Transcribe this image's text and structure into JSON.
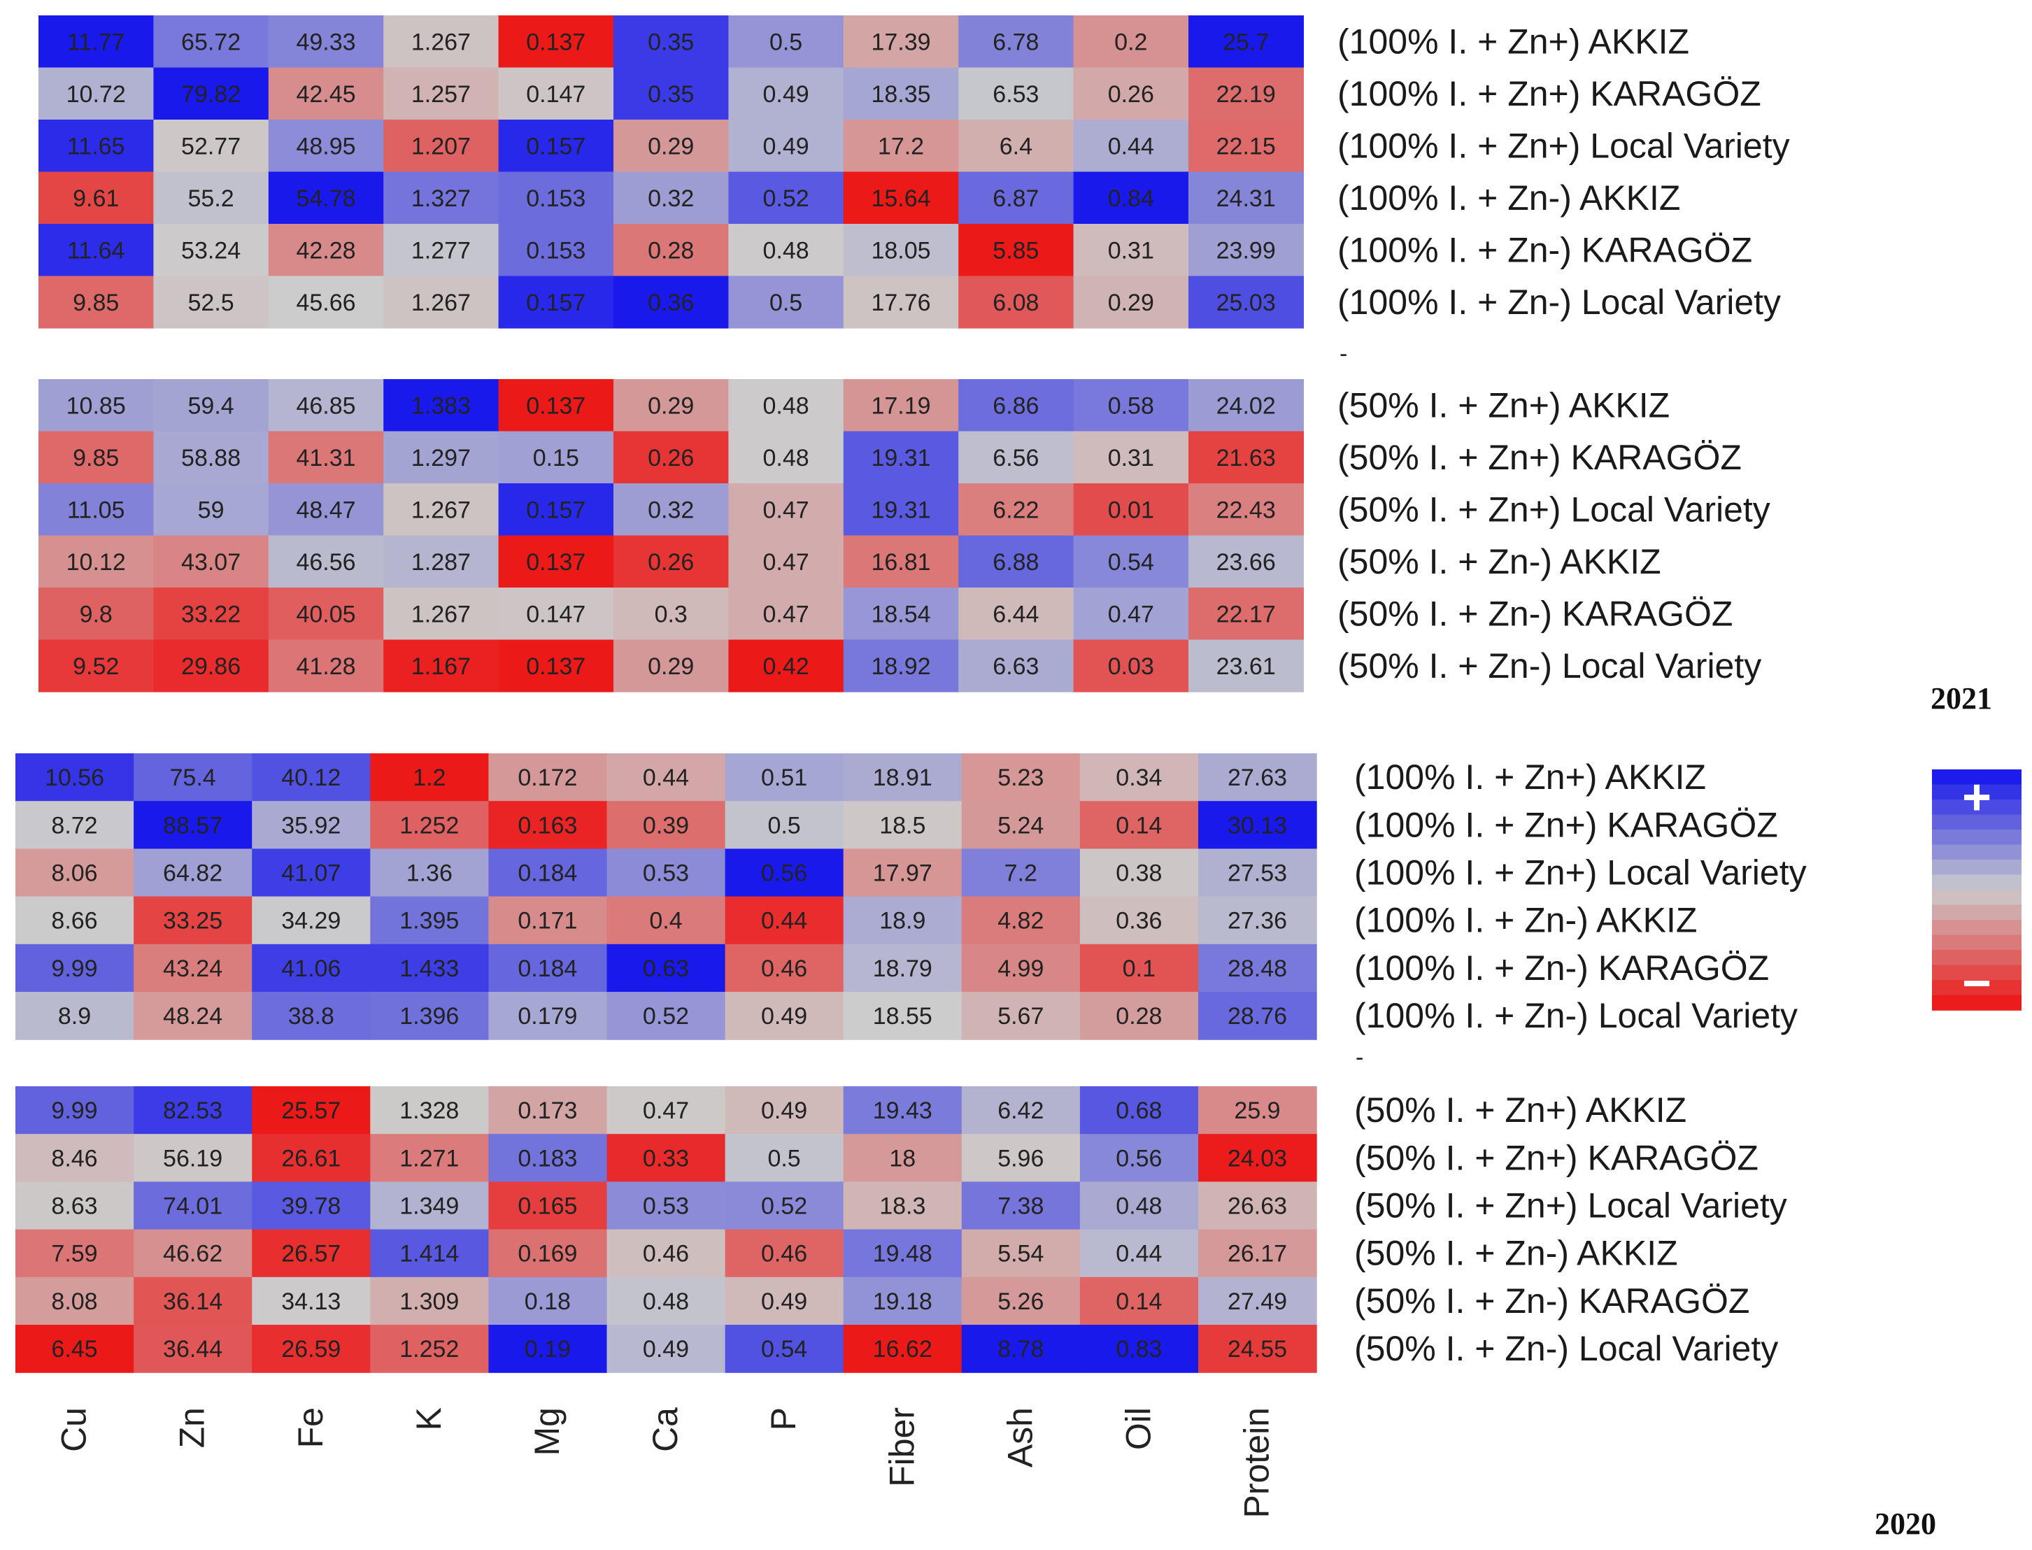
{
  "chart_data": {
    "type": "heatmap",
    "columns": [
      "Cu",
      "Zn",
      "Fe",
      "K",
      "Mg",
      "Ca",
      "P",
      "Fiber",
      "Ash",
      "Oil",
      "Protein"
    ],
    "legend": {
      "plus": "+",
      "minus": "−",
      "high_color": "#1010ee",
      "mid_color": "#cccccc",
      "low_color": "#ee1010"
    },
    "separator_mark": "-",
    "panels": [
      {
        "year": "2021",
        "groups": [
          {
            "rows": [
              {
                "label": "(100% I. + Zn+) AKKIZ",
                "values": [
                  "11.77",
                  "65.72",
                  "49.33",
                  "1.267",
                  "0.137",
                  "0.35",
                  "0.5",
                  "17.39",
                  "6.78",
                  "0.2",
                  "25.7"
                ]
              },
              {
                "label": "(100% I. + Zn+) KARAGÖZ",
                "values": [
                  "10.72",
                  "79.82",
                  "42.45",
                  "1.257",
                  "0.147",
                  "0.35",
                  "0.49",
                  "18.35",
                  "6.53",
                  "0.26",
                  "22.19"
                ]
              },
              {
                "label": "(100% I. + Zn+) Local Variety",
                "values": [
                  "11.65",
                  "52.77",
                  "48.95",
                  "1.207",
                  "0.157",
                  "0.29",
                  "0.49",
                  "17.2",
                  "6.4",
                  "0.44",
                  "22.15"
                ]
              },
              {
                "label": "(100% I. + Zn-) AKKIZ",
                "values": [
                  "9.61",
                  "55.2",
                  "54.78",
                  "1.327",
                  "0.153",
                  "0.32",
                  "0.52",
                  "15.64",
                  "6.87",
                  "0.84",
                  "24.31"
                ]
              },
              {
                "label": "(100% I. + Zn-) KARAGÖZ",
                "values": [
                  "11.64",
                  "53.24",
                  "42.28",
                  "1.277",
                  "0.153",
                  "0.28",
                  "0.48",
                  "18.05",
                  "5.85",
                  "0.31",
                  "23.99"
                ]
              },
              {
                "label": "(100% I. + Zn-) Local Variety",
                "values": [
                  "9.85",
                  "52.5",
                  "45.66",
                  "1.267",
                  "0.157",
                  "0.36",
                  "0.5",
                  "17.76",
                  "6.08",
                  "0.29",
                  "25.03"
                ]
              }
            ]
          },
          {
            "rows": [
              {
                "label": "(50% I. + Zn+) AKKIZ",
                "values": [
                  "10.85",
                  "59.4",
                  "46.85",
                  "1.383",
                  "0.137",
                  "0.29",
                  "0.48",
                  "17.19",
                  "6.86",
                  "0.58",
                  "24.02"
                ]
              },
              {
                "label": "(50% I. + Zn+) KARAGÖZ",
                "values": [
                  "9.85",
                  "58.88",
                  "41.31",
                  "1.297",
                  "0.15",
                  "0.26",
                  "0.48",
                  "19.31",
                  "6.56",
                  "0.31",
                  "21.63"
                ]
              },
              {
                "label": "(50% I. + Zn+) Local Variety",
                "values": [
                  "11.05",
                  "59",
                  "48.47",
                  "1.267",
                  "0.157",
                  "0.32",
                  "0.47",
                  "19.31",
                  "6.22",
                  "0.01",
                  "22.43"
                ]
              },
              {
                "label": "(50% I. + Zn-) AKKIZ",
                "values": [
                  "10.12",
                  "43.07",
                  "46.56",
                  "1.287",
                  "0.137",
                  "0.26",
                  "0.47",
                  "16.81",
                  "6.88",
                  "0.54",
                  "23.66"
                ]
              },
              {
                "label": "(50% I. + Zn-) KARAGÖZ",
                "values": [
                  "9.8",
                  "33.22",
                  "40.05",
                  "1.267",
                  "0.147",
                  "0.3",
                  "0.47",
                  "18.54",
                  "6.44",
                  "0.47",
                  "22.17"
                ]
              },
              {
                "label": "(50% I. + Zn-) Local Variety",
                "values": [
                  "9.52",
                  "29.86",
                  "41.28",
                  "1.167",
                  "0.137",
                  "0.29",
                  "0.42",
                  "18.92",
                  "6.63",
                  "0.03",
                  "23.61"
                ]
              }
            ]
          }
        ]
      },
      {
        "year": "2020",
        "groups": [
          {
            "rows": [
              {
                "label": "(100% I. + Zn+) AKKIZ",
                "values": [
                  "10.56",
                  "75.4",
                  "40.12",
                  "1.2",
                  "0.172",
                  "0.44",
                  "0.51",
                  "18.91",
                  "5.23",
                  "0.34",
                  "27.63"
                ]
              },
              {
                "label": "(100% I. + Zn+) KARAGÖZ",
                "values": [
                  "8.72",
                  "88.57",
                  "35.92",
                  "1.252",
                  "0.163",
                  "0.39",
                  "0.5",
                  "18.5",
                  "5.24",
                  "0.14",
                  "30.13"
                ]
              },
              {
                "label": "(100% I. + Zn+) Local Variety",
                "values": [
                  "8.06",
                  "64.82",
                  "41.07",
                  "1.36",
                  "0.184",
                  "0.53",
                  "0.56",
                  "17.97",
                  "7.2",
                  "0.38",
                  "27.53"
                ]
              },
              {
                "label": "(100% I. + Zn-) AKKIZ",
                "values": [
                  "8.66",
                  "33.25",
                  "34.29",
                  "1.395",
                  "0.171",
                  "0.4",
                  "0.44",
                  "18.9",
                  "4.82",
                  "0.36",
                  "27.36"
                ]
              },
              {
                "label": "(100% I. + Zn-) KARAGÖZ",
                "values": [
                  "9.99",
                  "43.24",
                  "41.06",
                  "1.433",
                  "0.184",
                  "0.63",
                  "0.46",
                  "18.79",
                  "4.99",
                  "0.1",
                  "28.48"
                ]
              },
              {
                "label": "(100% I. + Zn-) Local Variety",
                "values": [
                  "8.9",
                  "48.24",
                  "38.8",
                  "1.396",
                  "0.179",
                  "0.52",
                  "0.49",
                  "18.55",
                  "5.67",
                  "0.28",
                  "28.76"
                ]
              }
            ]
          },
          {
            "rows": [
              {
                "label": "(50% I. + Zn+) AKKIZ",
                "values": [
                  "9.99",
                  "82.53",
                  "25.57",
                  "1.328",
                  "0.173",
                  "0.47",
                  "0.49",
                  "19.43",
                  "6.42",
                  "0.68",
                  "25.9"
                ]
              },
              {
                "label": "(50% I. + Zn+) KARAGÖZ",
                "values": [
                  "8.46",
                  "56.19",
                  "26.61",
                  "1.271",
                  "0.183",
                  "0.33",
                  "0.5",
                  "18",
                  "5.96",
                  "0.56",
                  "24.03"
                ]
              },
              {
                "label": "(50% I. + Zn+) Local Variety",
                "values": [
                  "8.63",
                  "74.01",
                  "39.78",
                  "1.349",
                  "0.165",
                  "0.53",
                  "0.52",
                  "18.3",
                  "7.38",
                  "0.48",
                  "26.63"
                ]
              },
              {
                "label": "(50% I. + Zn-) AKKIZ",
                "values": [
                  "7.59",
                  "46.62",
                  "26.57",
                  "1.414",
                  "0.169",
                  "0.46",
                  "0.46",
                  "19.48",
                  "5.54",
                  "0.44",
                  "26.17"
                ]
              },
              {
                "label": "(50% I. + Zn-) KARAGÖZ",
                "values": [
                  "8.08",
                  "36.14",
                  "34.13",
                  "1.309",
                  "0.18",
                  "0.48",
                  "0.49",
                  "19.18",
                  "5.26",
                  "0.14",
                  "27.49"
                ]
              },
              {
                "label": "(50% I. + Zn-) Local Variety",
                "values": [
                  "6.45",
                  "36.44",
                  "26.59",
                  "1.252",
                  "0.19",
                  "0.49",
                  "0.54",
                  "16.62",
                  "8.78",
                  "0.83",
                  "24.55"
                ]
              }
            ]
          }
        ]
      }
    ]
  }
}
